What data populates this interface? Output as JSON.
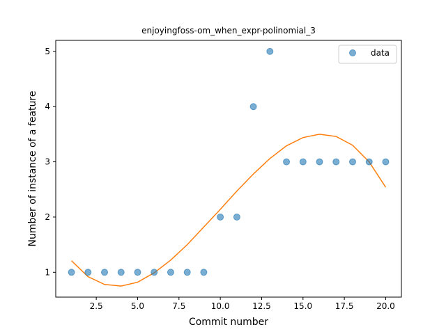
{
  "chart_data": {
    "type": "scatter",
    "title": "enjoyingfoss-om_when_expr-polinomial_3",
    "xlabel": "Commit number",
    "ylabel": "Number of instance of a feature",
    "xlim": [
      0.05,
      20.95
    ],
    "ylim": [
      0.55,
      5.2
    ],
    "xticks": [
      2.5,
      5.0,
      7.5,
      10.0,
      12.5,
      15.0,
      17.5,
      20.0
    ],
    "xtick_labels": [
      "2.5",
      "5.0",
      "7.5",
      "10.0",
      "12.5",
      "15.0",
      "17.5",
      "20.0"
    ],
    "yticks": [
      1,
      2,
      3,
      4,
      5
    ],
    "ytick_labels": [
      "1",
      "2",
      "3",
      "4",
      "5"
    ],
    "legend_position": "top-right",
    "series": [
      {
        "name": "data",
        "kind": "scatter",
        "color": "#1f77b4",
        "x": [
          1,
          2,
          3,
          4,
          5,
          6,
          7,
          8,
          9,
          10,
          11,
          12,
          13,
          14,
          15,
          16,
          17,
          18,
          19,
          20
        ],
        "y": [
          1,
          1,
          1,
          1,
          1,
          1,
          1,
          1,
          1,
          2,
          2,
          4,
          5,
          3,
          3,
          3,
          3,
          3,
          3,
          3
        ]
      },
      {
        "kind": "line",
        "color": "#ff7f0e",
        "x": [
          1,
          2,
          3,
          4,
          5,
          6,
          7,
          8,
          9,
          10,
          11,
          12,
          13,
          14,
          15,
          16,
          17,
          18,
          19,
          20
        ],
        "y": [
          1.21,
          0.92,
          0.78,
          0.75,
          0.82,
          0.99,
          1.22,
          1.5,
          1.82,
          2.14,
          2.47,
          2.78,
          3.06,
          3.29,
          3.44,
          3.5,
          3.46,
          3.3,
          3.0,
          2.54
        ]
      }
    ]
  }
}
